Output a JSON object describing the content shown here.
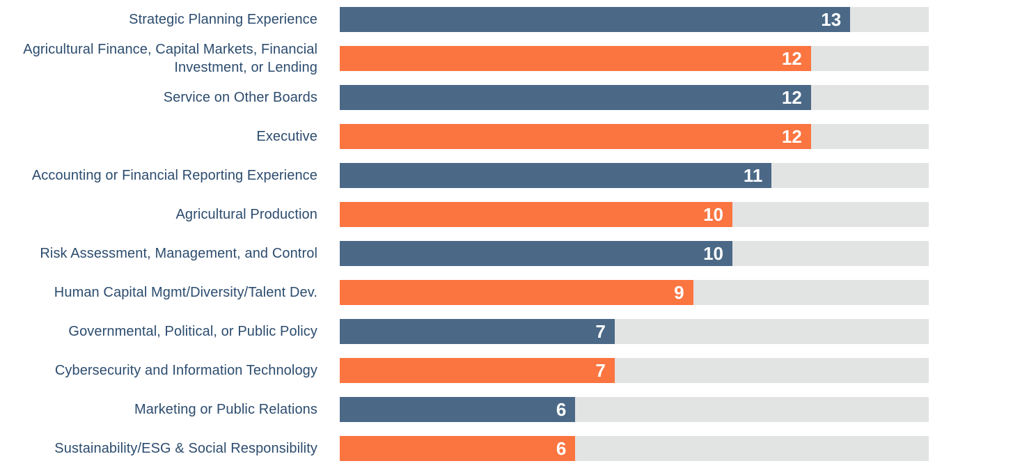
{
  "chart_data": {
    "type": "bar",
    "orientation": "horizontal",
    "title": "",
    "xlabel": "",
    "ylabel": "",
    "xlim": [
      0,
      15
    ],
    "grid": false,
    "legend": null,
    "value_labels_shown": true,
    "categories": [
      "Strategic Planning Experience",
      "Agricultural Finance, Capital Markets, Financial Investment, or Lending",
      "Service on Other Boards",
      "Executive",
      "Accounting  or Financial Reporting Experience",
      "Agricultural Production",
      "Risk Assessment, Management, and Control",
      "Human Capital Mgmt/Diversity/Talent Dev.",
      "Governmental, Political, or Public Policy",
      "Cybersecurity and Information Technology",
      "Marketing or Public Relations",
      "Sustainability/ESG & Social Responsibility"
    ],
    "values": [
      13,
      12,
      12,
      12,
      11,
      10,
      10,
      9,
      7,
      7,
      6,
      6
    ],
    "colors": {
      "bar_alternating": [
        "#4B6987",
        "#FB7540"
      ],
      "track": "#E2E3E3",
      "category_label": "#2C4C6E",
      "value_label": "#FFFFFF",
      "background": "#FFFFFF"
    }
  }
}
